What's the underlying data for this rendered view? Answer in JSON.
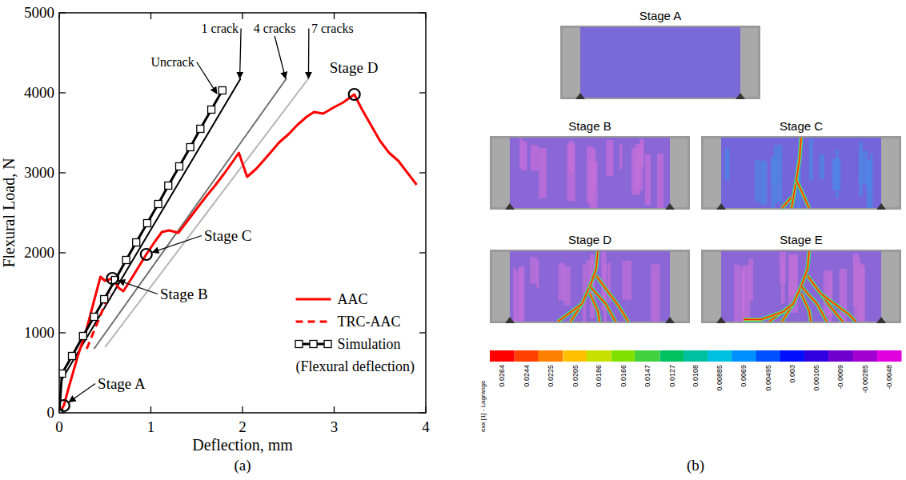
{
  "chart_data": {
    "type": "line",
    "xlabel": "Deflection, mm",
    "ylabel": "Flexural Load, N",
    "xlim": [
      0,
      4
    ],
    "ylim": [
      0,
      5000
    ],
    "xticks": [
      0,
      1,
      2,
      3,
      4
    ],
    "yticks": [
      0,
      1000,
      2000,
      3000,
      4000,
      5000
    ],
    "grid": false,
    "legend": "lower right",
    "legend_note": "(Flexural deflection)",
    "series": [
      {
        "name": "AAC",
        "color": "#ff0000",
        "line_style": "solid",
        "x": [
          0,
          0.05,
          0.1,
          0.2,
          0.3,
          0.38,
          0.45,
          0.5,
          0.58,
          0.65,
          0.7,
          0.8,
          0.95,
          1.05,
          1.12,
          1.2,
          1.3,
          1.4,
          1.5,
          1.6,
          1.7,
          1.8,
          1.9,
          1.96,
          2.05,
          2.15,
          2.25,
          2.4,
          2.5,
          2.6,
          2.7,
          2.78,
          2.88,
          3.0,
          3.1,
          3.22,
          3.3,
          3.4,
          3.5,
          3.6,
          3.7,
          3.8,
          3.9
        ],
        "values": [
          0,
          90,
          300,
          700,
          1050,
          1400,
          1700,
          1650,
          1680,
          1560,
          1520,
          1700,
          1980,
          2150,
          2260,
          2280,
          2250,
          2400,
          2550,
          2700,
          2840,
          2990,
          3150,
          3250,
          2950,
          3050,
          3180,
          3380,
          3480,
          3600,
          3700,
          3760,
          3740,
          3820,
          3880,
          3980,
          3800,
          3600,
          3400,
          3250,
          3150,
          3000,
          2850
        ]
      },
      {
        "name": "TRC-AAC",
        "color": "#ff0000",
        "line_style": "dashed",
        "x": [
          0.3,
          0.55
        ],
        "values": [
          800,
          1500
        ]
      },
      {
        "name": "Simulation",
        "color": "#000000",
        "line_style": "solid",
        "marker": "square",
        "x": [
          0,
          0.03,
          0.14,
          0.26,
          0.38,
          0.49,
          0.61,
          0.73,
          0.84,
          0.96,
          1.08,
          1.19,
          1.31,
          1.43,
          1.54,
          1.66,
          1.78
        ],
        "values": [
          0,
          490,
          710,
          960,
          1200,
          1420,
          1660,
          1910,
          2130,
          2370,
          2610,
          2840,
          3080,
          3320,
          3550,
          3790,
          4030
        ]
      }
    ],
    "reference_lines": [
      {
        "color": "#000000",
        "x": [
          0.02,
          1.98
        ],
        "values": [
          400,
          4180
        ]
      },
      {
        "color": "#6e6e6e",
        "x": [
          0.38,
          2.48
        ],
        "values": [
          800,
          4180
        ]
      },
      {
        "color": "#b4b4b4",
        "x": [
          0.5,
          2.72
        ],
        "values": [
          820,
          4180
        ]
      }
    ],
    "annotations": [
      {
        "text": "Uncrack",
        "x": 1.0,
        "y": 4330,
        "arrow_x": 1.72,
        "arrow_y": 3990
      },
      {
        "text": "1 crack",
        "x": 1.55,
        "y": 4750,
        "arrow_x": 1.97,
        "arrow_y": 4180
      },
      {
        "text": "4 cracks",
        "x": 2.12,
        "y": 4750,
        "arrow_x": 2.47,
        "arrow_y": 4180
      },
      {
        "text": "7 cracks",
        "x": 2.75,
        "y": 4750,
        "arrow_x": 2.72,
        "arrow_y": 4180
      }
    ],
    "stages": [
      {
        "text": "Stage A",
        "x": 0.05,
        "y": 90,
        "label_x": 0.42,
        "label_y": 300
      },
      {
        "text": "Stage B",
        "x": 0.58,
        "y": 1680,
        "label_x": 1.1,
        "label_y": 1420
      },
      {
        "text": "Stage C",
        "x": 0.95,
        "y": 1980,
        "label_x": 1.58,
        "label_y": 2150
      },
      {
        "text": "Stage D",
        "x": 3.22,
        "y": 3980,
        "label_x": 2.95,
        "label_y": 4250
      }
    ]
  },
  "panel_labels": [
    "(a)",
    "(b)"
  ],
  "strain_maps": {
    "stages": [
      "Stage A",
      "Stage B",
      "Stage C",
      "Stage D",
      "Stage E"
    ],
    "colorbar": {
      "title": "exx [1] - Lagrange",
      "range": [
        0.0264,
        -0.0048
      ],
      "ticks": [
        0.0264,
        0.0244,
        0.0225,
        0.0205,
        0.0186,
        0.0166,
        0.0147,
        0.0127,
        0.0108,
        0.00885,
        0.0069,
        0.00495,
        0.003,
        0.00105,
        -0.0009,
        -0.00285,
        -0.0048
      ],
      "colors": [
        "#ff0000",
        "#ff4000",
        "#ff8000",
        "#ffc000",
        "#c8e000",
        "#80e000",
        "#40d040",
        "#00c060",
        "#00c0a0",
        "#00c0e0",
        "#0090ff",
        "#0050ff",
        "#0010ff",
        "#3000e0",
        "#7000d0",
        "#a000d0",
        "#e000e0"
      ]
    }
  }
}
